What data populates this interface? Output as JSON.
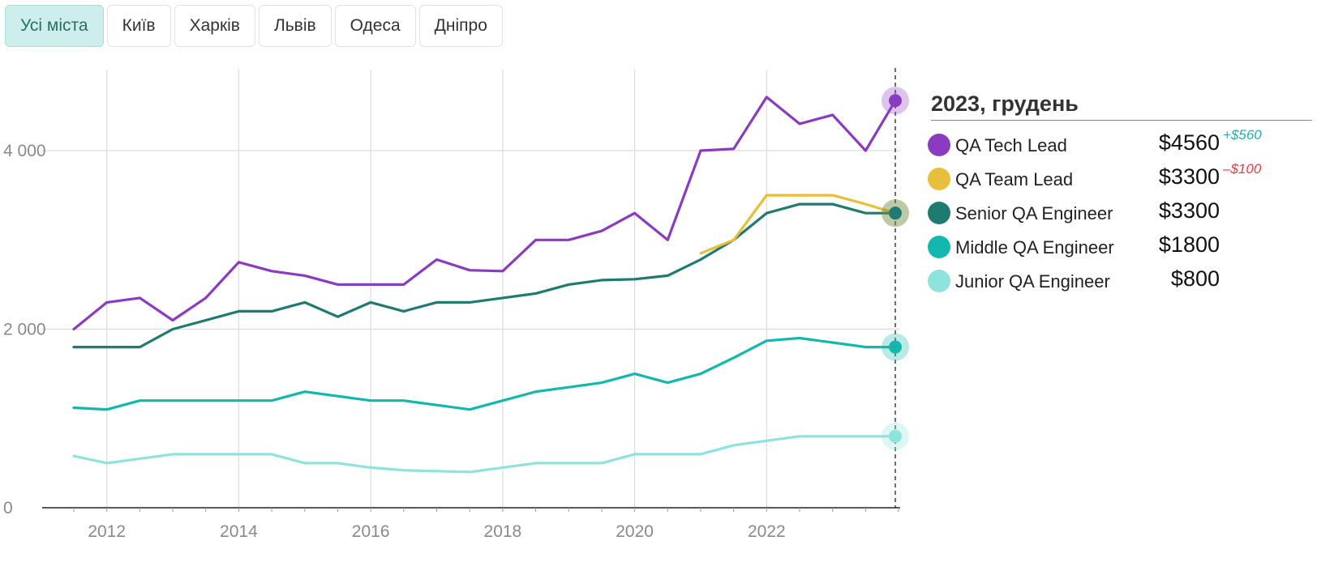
{
  "tabs": [
    {
      "label": "Усі міста",
      "active": true
    },
    {
      "label": "Київ",
      "active": false
    },
    {
      "label": "Харків",
      "active": false
    },
    {
      "label": "Львів",
      "active": false
    },
    {
      "label": "Одеса",
      "active": false
    },
    {
      "label": "Дніпро",
      "active": false
    }
  ],
  "legend": {
    "title": "2023, грудень",
    "items": [
      {
        "label": "QA Tech Lead",
        "value": "$4560",
        "delta": "+$560",
        "delta_color": "#1fb3a6",
        "color": "#8a3bbf"
      },
      {
        "label": "QA Team Lead",
        "value": "$3300",
        "delta": "–$100",
        "delta_color": "#e0404a",
        "color": "#e8bf3a"
      },
      {
        "label": "Senior QA Engineer",
        "value": "$3300",
        "delta": "",
        "delta_color": "#1fb3a6",
        "color": "#1f7a72"
      },
      {
        "label": "Middle QA Engineer",
        "value": "$1800",
        "delta": "",
        "delta_color": "#1fb3a6",
        "color": "#13b8ad"
      },
      {
        "label": "Junior QA Engineer",
        "value": "$800",
        "delta": "",
        "delta_color": "#1fb3a6",
        "color": "#8ee3dc"
      }
    ]
  },
  "chart_data": {
    "type": "line",
    "title": "",
    "xlabel": "",
    "ylabel": "",
    "xlim": [
      2011.4,
      2024.1
    ],
    "ylim": [
      0,
      4700
    ],
    "x_ticks": [
      2012,
      2014,
      2016,
      2018,
      2020,
      2022
    ],
    "x_tick_labels": [
      "2012",
      "2014",
      "2016",
      "2018",
      "2020",
      "2022"
    ],
    "y_ticks": [
      0,
      2000,
      4000
    ],
    "y_tick_labels": [
      "0",
      "2 000",
      "4 000"
    ],
    "vertical_marker_x": 2023.95,
    "series": [
      {
        "name": "QA Tech Lead",
        "color": "#8a3bbf",
        "x": [
          2011.5,
          2012.0,
          2012.5,
          2013.0,
          2013.5,
          2014.0,
          2014.5,
          2015.0,
          2015.5,
          2016.0,
          2016.5,
          2017.0,
          2017.5,
          2018.0,
          2018.5,
          2019.0,
          2019.5,
          2020.0,
          2020.5,
          2021.0,
          2021.5,
          2022.0,
          2022.5,
          2023.0,
          2023.5,
          2023.95
        ],
        "values": [
          2000,
          2300,
          2350,
          2100,
          2350,
          2750,
          2650,
          2600,
          2500,
          2500,
          2500,
          2780,
          2660,
          2650,
          3000,
          3000,
          3100,
          3300,
          3000,
          4000,
          4020,
          4600,
          4300,
          4400,
          4000,
          4560
        ]
      },
      {
        "name": "QA Team Lead",
        "color": "#e8bf3a",
        "x": [
          2021.0,
          2021.5,
          2022.0,
          2022.5,
          2023.0,
          2023.5,
          2023.95
        ],
        "values": [
          2850,
          3000,
          3500,
          3500,
          3500,
          3400,
          3300
        ]
      },
      {
        "name": "Senior QA Engineer",
        "color": "#1f7a72",
        "x": [
          2011.5,
          2012.0,
          2012.5,
          2013.0,
          2013.5,
          2014.0,
          2014.5,
          2015.0,
          2015.5,
          2016.0,
          2016.5,
          2017.0,
          2017.5,
          2018.0,
          2018.5,
          2019.0,
          2019.5,
          2020.0,
          2020.5,
          2021.0,
          2021.5,
          2022.0,
          2022.5,
          2023.0,
          2023.5,
          2023.95
        ],
        "values": [
          1800,
          1800,
          1800,
          2000,
          2100,
          2200,
          2200,
          2300,
          2140,
          2300,
          2200,
          2300,
          2300,
          2350,
          2400,
          2500,
          2550,
          2560,
          2600,
          2780,
          3000,
          3300,
          3400,
          3400,
          3300,
          3300
        ]
      },
      {
        "name": "Middle QA Engineer",
        "color": "#13b8ad",
        "x": [
          2011.5,
          2012.0,
          2012.5,
          2013.0,
          2013.5,
          2014.0,
          2014.5,
          2015.0,
          2015.5,
          2016.0,
          2016.5,
          2017.0,
          2017.5,
          2018.0,
          2018.5,
          2019.0,
          2019.5,
          2020.0,
          2020.5,
          2021.0,
          2021.5,
          2022.0,
          2022.5,
          2023.0,
          2023.5,
          2023.95
        ],
        "values": [
          1120,
          1100,
          1200,
          1200,
          1200,
          1200,
          1200,
          1300,
          1250,
          1200,
          1200,
          1150,
          1100,
          1200,
          1300,
          1350,
          1400,
          1500,
          1400,
          1500,
          1680,
          1870,
          1900,
          1850,
          1800,
          1800
        ]
      },
      {
        "name": "Junior QA Engineer",
        "color": "#8ee3dc",
        "x": [
          2011.5,
          2012.0,
          2012.5,
          2013.0,
          2013.5,
          2014.0,
          2014.5,
          2015.0,
          2015.5,
          2016.0,
          2016.5,
          2017.0,
          2017.5,
          2018.0,
          2018.5,
          2019.0,
          2019.5,
          2020.0,
          2020.5,
          2021.0,
          2021.5,
          2022.0,
          2022.5,
          2023.0,
          2023.5,
          2023.95
        ],
        "values": [
          580,
          500,
          550,
          600,
          600,
          600,
          600,
          500,
          500,
          450,
          420,
          410,
          400,
          450,
          500,
          500,
          500,
          600,
          600,
          600,
          700,
          750,
          800,
          800,
          800,
          800
        ]
      }
    ]
  }
}
